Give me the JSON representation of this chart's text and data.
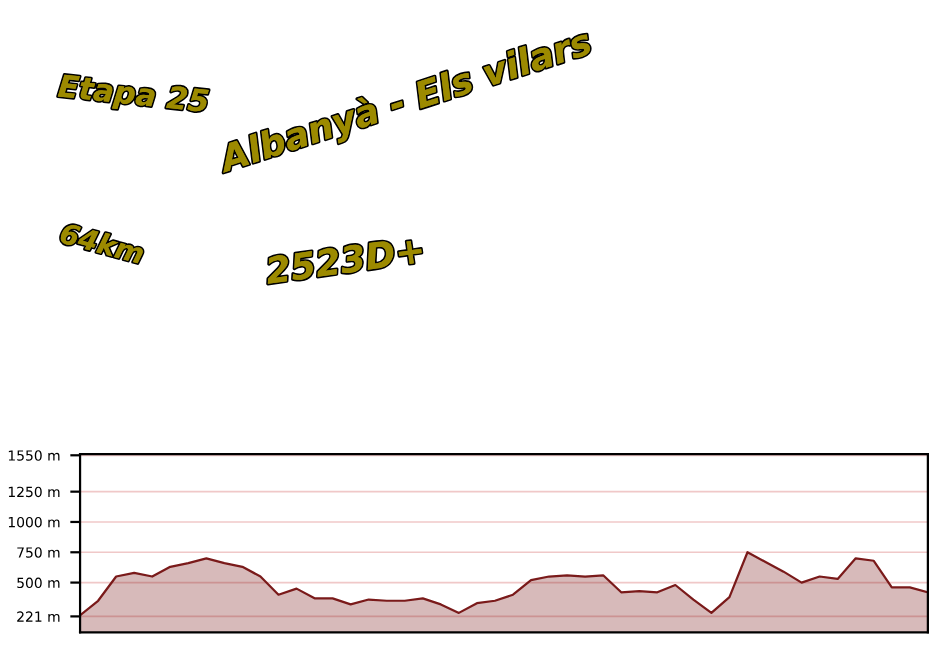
{
  "chart_data": {
    "type": "area",
    "title": "Etapa 25",
    "subtitle": "Albanyà - Els vilars",
    "annotations": [
      "64km",
      "2523D+"
    ],
    "categories": [
      null,
      null,
      null,
      null,
      null,
      null,
      null,
      null,
      null,
      null,
      null,
      null,
      null,
      null,
      null,
      null,
      null,
      null,
      null,
      null,
      null,
      null,
      null,
      null,
      null,
      null,
      null,
      null,
      null,
      null,
      null,
      null,
      null,
      null,
      null,
      null,
      null,
      null,
      null,
      null,
      null,
      null,
      null,
      null,
      null,
      null,
      null,
      null
    ],
    "series": [
      {
        "color": "#7a1a1a",
        "values": [
          230,
          350,
          550,
          580,
          550,
          630,
          660,
          700,
          660,
          630,
          550,
          400,
          450,
          370,
          370,
          320,
          360,
          350,
          350,
          370,
          320,
          250,
          330,
          350,
          400,
          520,
          550,
          560,
          550,
          560,
          420,
          430,
          420,
          480,
          360,
          250,
          380,
          750,
          670,
          590,
          500,
          550,
          530,
          700,
          680,
          460,
          460,
          420
        ]
      }
    ],
    "ylim": [
      90,
      1560
    ],
    "yticks": [
      {
        "value": 221,
        "label": "221 m"
      },
      {
        "value": 500,
        "label": "500 m"
      },
      {
        "value": 750,
        "label": "750 m"
      },
      {
        "value": 1000,
        "label": "1000 m"
      },
      {
        "value": 1250,
        "label": "1250 m"
      },
      {
        "value": 1550,
        "label": "1550 m"
      }
    ],
    "grid": "y"
  }
}
